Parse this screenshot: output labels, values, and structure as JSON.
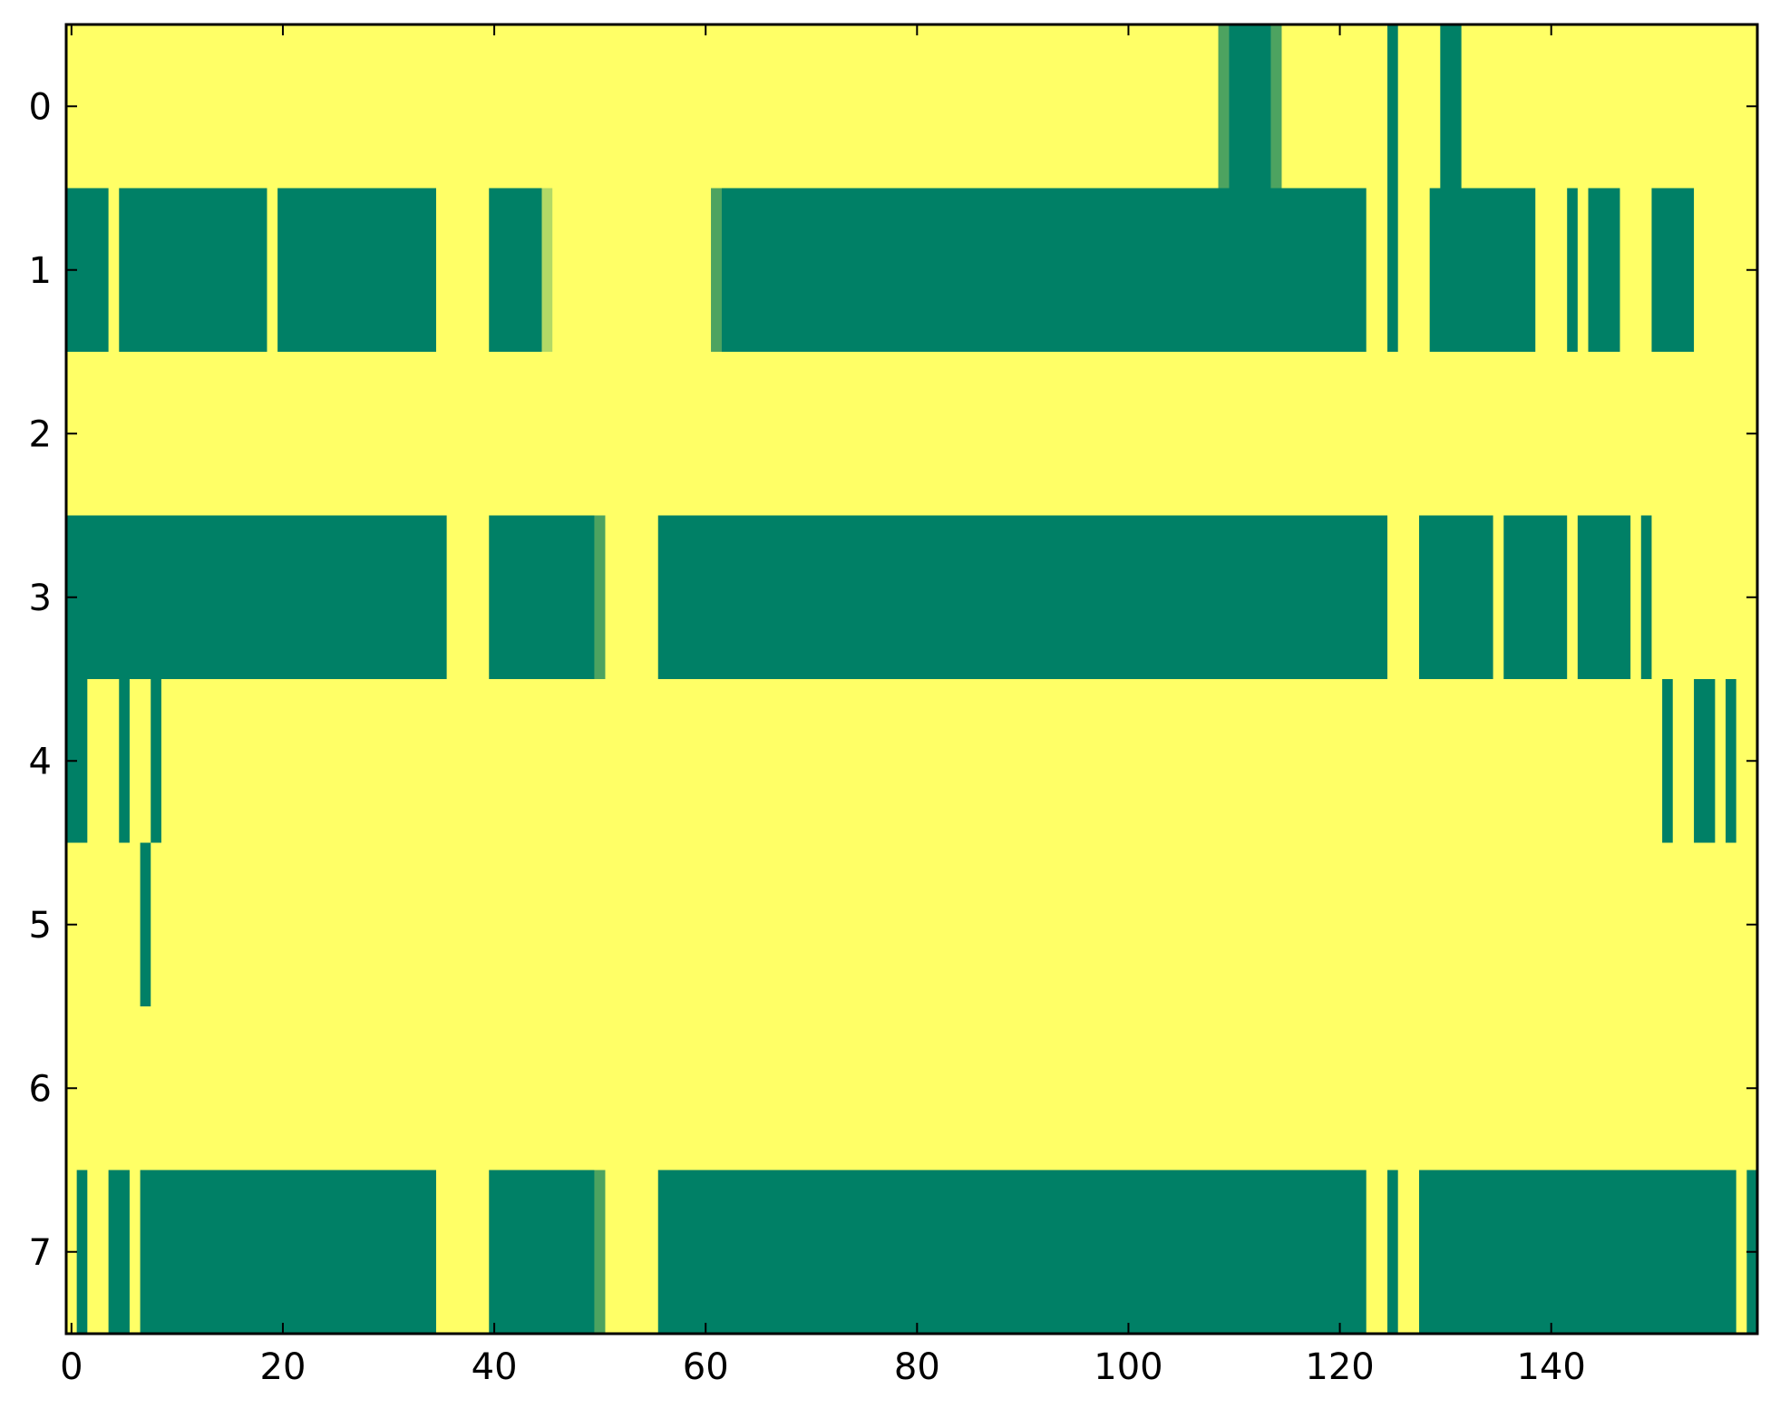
{
  "colors": {
    "background": "#ffff66",
    "high": "#008066",
    "mid_dark": "#4da360",
    "mid_light": "#b3d966",
    "axis": "#000000",
    "page": "#ffffff"
  },
  "chart_data": {
    "type": "heatmap",
    "title": "",
    "xlabel": "",
    "ylabel": "",
    "colormap": "summer",
    "value_scale": [
      0,
      1
    ],
    "background_value": 0,
    "xlim": [
      -0.5,
      159.5
    ],
    "ylim": [
      7.5,
      -0.5
    ],
    "x_ticks": [
      0,
      20,
      40,
      60,
      80,
      100,
      120,
      140
    ],
    "y_ticks": [
      0,
      1,
      2,
      3,
      4,
      5,
      6,
      7
    ],
    "grid": false,
    "legend": "none",
    "n_rows": 8,
    "n_cols": 160,
    "rows": [
      {
        "row": 0,
        "runs": [
          {
            "start": 109,
            "end": 109,
            "value": 0.85
          },
          {
            "start": 110,
            "end": 113,
            "value": 1
          },
          {
            "start": 114,
            "end": 114,
            "value": 0.85
          },
          {
            "start": 125,
            "end": 125,
            "value": 1
          },
          {
            "start": 130,
            "end": 131,
            "value": 1
          }
        ]
      },
      {
        "row": 1,
        "runs": [
          {
            "start": 0,
            "end": 3,
            "value": 1
          },
          {
            "start": 5,
            "end": 18,
            "value": 1
          },
          {
            "start": 20,
            "end": 34,
            "value": 1
          },
          {
            "start": 40,
            "end": 44,
            "value": 1
          },
          {
            "start": 45,
            "end": 45,
            "value": 0.6
          },
          {
            "start": 61,
            "end": 61,
            "value": 0.85
          },
          {
            "start": 62,
            "end": 122,
            "value": 1
          },
          {
            "start": 125,
            "end": 125,
            "value": 1
          },
          {
            "start": 129,
            "end": 138,
            "value": 1
          },
          {
            "start": 142,
            "end": 142,
            "value": 1
          },
          {
            "start": 144,
            "end": 146,
            "value": 1
          },
          {
            "start": 150,
            "end": 153,
            "value": 1
          }
        ]
      },
      {
        "row": 2,
        "runs": []
      },
      {
        "row": 3,
        "runs": [
          {
            "start": 0,
            "end": 35,
            "value": 1
          },
          {
            "start": 40,
            "end": 49,
            "value": 1
          },
          {
            "start": 50,
            "end": 50,
            "value": 0.85
          },
          {
            "start": 56,
            "end": 124,
            "value": 1
          },
          {
            "start": 128,
            "end": 134,
            "value": 1
          },
          {
            "start": 136,
            "end": 141,
            "value": 1
          },
          {
            "start": 143,
            "end": 147,
            "value": 1
          },
          {
            "start": 149,
            "end": 149,
            "value": 1
          }
        ]
      },
      {
        "row": 4,
        "runs": [
          {
            "start": 0,
            "end": 1,
            "value": 1
          },
          {
            "start": 5,
            "end": 5,
            "value": 1
          },
          {
            "start": 8,
            "end": 8,
            "value": 1
          },
          {
            "start": 151,
            "end": 151,
            "value": 1
          },
          {
            "start": 154,
            "end": 155,
            "value": 1
          },
          {
            "start": 157,
            "end": 157,
            "value": 1
          }
        ]
      },
      {
        "row": 5,
        "runs": [
          {
            "start": 7,
            "end": 7,
            "value": 1
          }
        ]
      },
      {
        "row": 6,
        "runs": []
      },
      {
        "row": 7,
        "runs": [
          {
            "start": 1,
            "end": 1,
            "value": 1
          },
          {
            "start": 4,
            "end": 5,
            "value": 1
          },
          {
            "start": 7,
            "end": 34,
            "value": 1
          },
          {
            "start": 40,
            "end": 49,
            "value": 1
          },
          {
            "start": 50,
            "end": 50,
            "value": 0.85
          },
          {
            "start": 56,
            "end": 122,
            "value": 1
          },
          {
            "start": 125,
            "end": 125,
            "value": 1
          },
          {
            "start": 128,
            "end": 157,
            "value": 1
          },
          {
            "start": 159,
            "end": 159,
            "value": 1
          }
        ]
      }
    ]
  }
}
